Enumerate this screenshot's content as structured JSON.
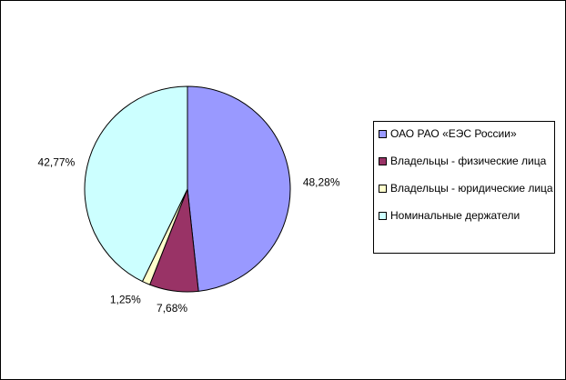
{
  "chart_data": {
    "type": "pie",
    "categories": [
      "ОАО РАО «ЕЭС России»",
      "Владельцы - физические лица",
      "Владельцы - юридические лица",
      "Номинальные держатели"
    ],
    "values": [
      48.28,
      7.68,
      1.25,
      42.77
    ],
    "value_labels": [
      "48,28%",
      "7,68%",
      "1,25%",
      "42,77%"
    ],
    "colors": [
      "#9999ff",
      "#993366",
      "#ffffcc",
      "#ccffff"
    ],
    "legend": "right"
  }
}
